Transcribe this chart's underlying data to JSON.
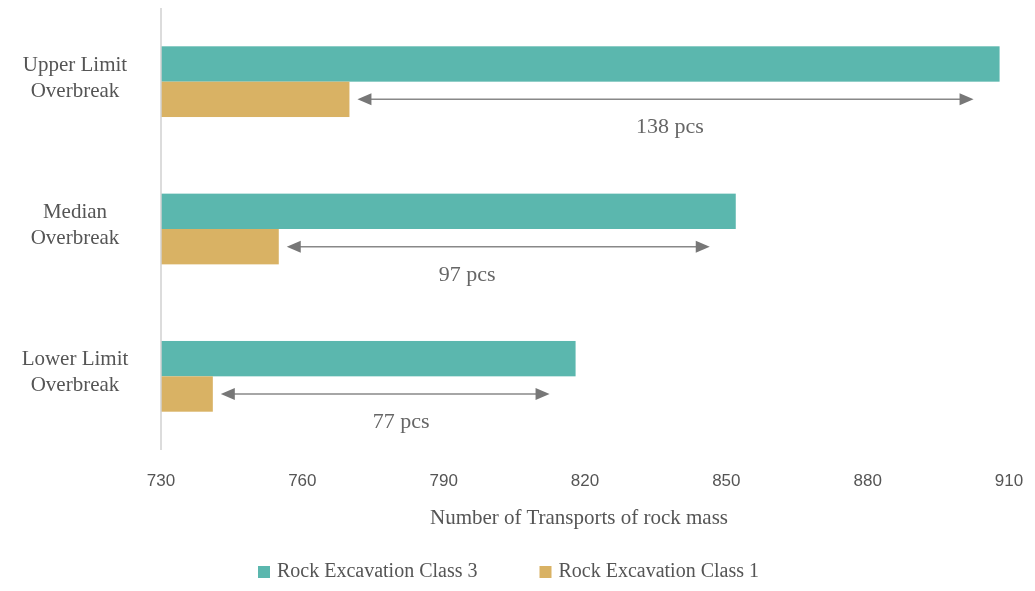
{
  "chart_data": {
    "type": "bar",
    "orientation": "horizontal",
    "categories": [
      "Upper Limit Overbreak",
      "Median Overbreak",
      "Lower Limit Overbreak"
    ],
    "series": [
      {
        "name": "Rock Excavation Class 3",
        "color": "#5bb7ae",
        "values": [
          908,
          852,
          818
        ]
      },
      {
        "name": "Rock Excavation Class 1",
        "color": "#d9b264",
        "values": [
          770,
          755,
          741
        ]
      }
    ],
    "xlim": [
      730,
      910
    ],
    "xticks": [
      730,
      760,
      790,
      820,
      850,
      880,
      910
    ],
    "xlabel": "Number of Transports of rock mass",
    "grid": false,
    "legend": "bottom",
    "annotations": [
      {
        "text": "138 pcs",
        "x": 838,
        "y": "Upper Limit Overbreak"
      },
      {
        "text": "97 pcs",
        "x": 795,
        "y": "Median Overbreak"
      },
      {
        "text": "77 pcs",
        "x": 781,
        "y": "Lower Limit Overbreak"
      }
    ]
  }
}
